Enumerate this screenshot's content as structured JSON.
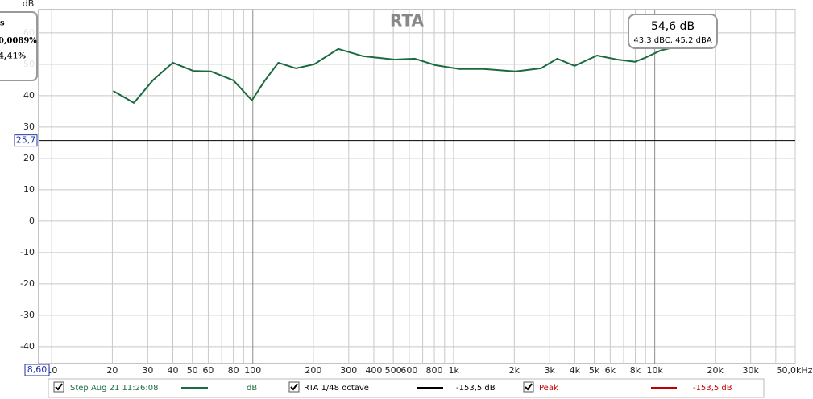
{
  "chart_data": {
    "type": "line",
    "title": "RTA",
    "y_label": "dB",
    "xscale": "log",
    "grid": true,
    "xlim": [
      8.6,
      50000
    ],
    "ylim": [
      -45.4,
      67.4
    ],
    "xticks": [
      10,
      20,
      30,
      40,
      50,
      60,
      80,
      100,
      200,
      300,
      400,
      500,
      600,
      800,
      {
        "value": 1000,
        "label": "1k"
      },
      {
        "value": 2000,
        "label": "2k"
      },
      {
        "value": 3000,
        "label": "3k"
      },
      {
        "value": 4000,
        "label": "4k"
      },
      {
        "value": 5000,
        "label": "5k"
      },
      {
        "value": 6000,
        "label": "6k"
      },
      {
        "value": 8000,
        "label": "8k"
      },
      {
        "value": 10000,
        "label": "10k"
      },
      {
        "value": 20000,
        "label": "20k"
      },
      {
        "value": 30000,
        "label": "30k"
      },
      {
        "value": 50000,
        "label": "50,0kHz"
      }
    ],
    "xminor": [
      70,
      90,
      700,
      900,
      7000,
      9000,
      40000
    ],
    "yticks": [
      -40,
      -30,
      -20,
      -10,
      0,
      10,
      20,
      30,
      40,
      50,
      60
    ],
    "x": [
      20.2,
      25.6,
      31.8,
      40,
      50.5,
      62,
      80,
      98.9,
      115,
      134,
      164,
      202,
      266,
      352,
      508,
      640,
      810,
      1067,
      1407,
      2030,
      2717,
      3270,
      3990,
      5160,
      6500,
      7960,
      8900,
      10700,
      12860
    ],
    "series": [
      {
        "name": "Step Aug 21 11:26:08",
        "color": "#1b6b3f",
        "unit": "dB",
        "values": [
          41.5,
          37.7,
          44.9,
          50.5,
          47.9,
          47.7,
          44.9,
          38.5,
          44.9,
          50.5,
          48.7,
          50,
          54.9,
          52.6,
          51.5,
          51.8,
          49.7,
          48.5,
          48.5,
          47.7,
          48.7,
          51.8,
          49.5,
          52.8,
          51.5,
          50.8,
          52,
          54.4,
          55.6
        ]
      }
    ],
    "cursor": {
      "x": {
        "value": 8.6,
        "label": "8,60"
      },
      "y": {
        "value": 25.7,
        "label": "25,7"
      }
    },
    "readout": {
      "level": "54,6 dB",
      "weighted": "43,3 dBC, 45,2 dBA"
    },
    "side_panel": [
      "s",
      "0,0089%",
      "4,41%"
    ],
    "legend": [
      {
        "name": "RTA 1/48 octave",
        "color": "#000000",
        "value": "-153,5 dB"
      },
      {
        "name": "Peak",
        "color": "#c00000",
        "value": "-153,5 dB"
      }
    ]
  }
}
